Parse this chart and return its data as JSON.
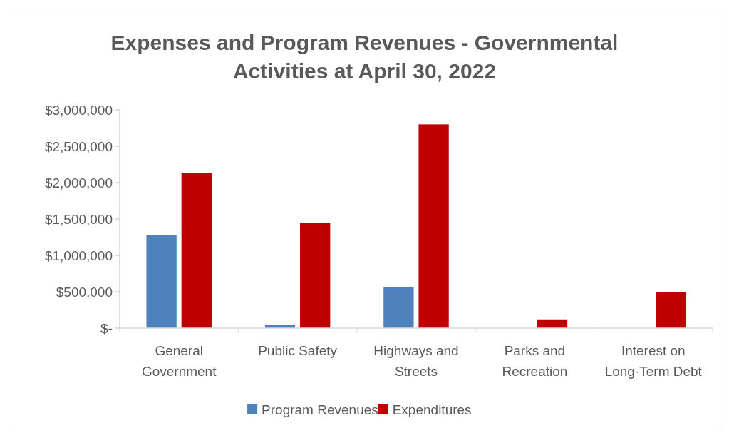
{
  "chart_data": {
    "type": "bar",
    "title": "Expenses and Program Revenues - Governmental Activities at April 30, 2022",
    "categories": [
      "General Government",
      "Public Safety",
      "Highways and Streets",
      "Parks and Recreation",
      "Interest on Long-Term Debt"
    ],
    "series": [
      {
        "name": "Program Revenues",
        "color": "#4f81bd",
        "values": [
          1280000,
          40000,
          560000,
          0,
          0
        ]
      },
      {
        "name": "Expenditures",
        "color": "#c00000",
        "values": [
          2130000,
          1450000,
          2800000,
          120000,
          490000
        ]
      }
    ],
    "ylim": [
      0,
      3000000
    ],
    "yticks": [
      {
        "value": 0,
        "label": "$-"
      },
      {
        "value": 500000,
        "label": "$500,000"
      },
      {
        "value": 1000000,
        "label": "$1,000,000"
      },
      {
        "value": 1500000,
        "label": "$1,500,000"
      },
      {
        "value": 2000000,
        "label": "$2,000,000"
      },
      {
        "value": 2500000,
        "label": "$2,500,000"
      },
      {
        "value": 3000000,
        "label": "$3,000,000"
      }
    ],
    "grid": false,
    "legend": "bottom"
  }
}
